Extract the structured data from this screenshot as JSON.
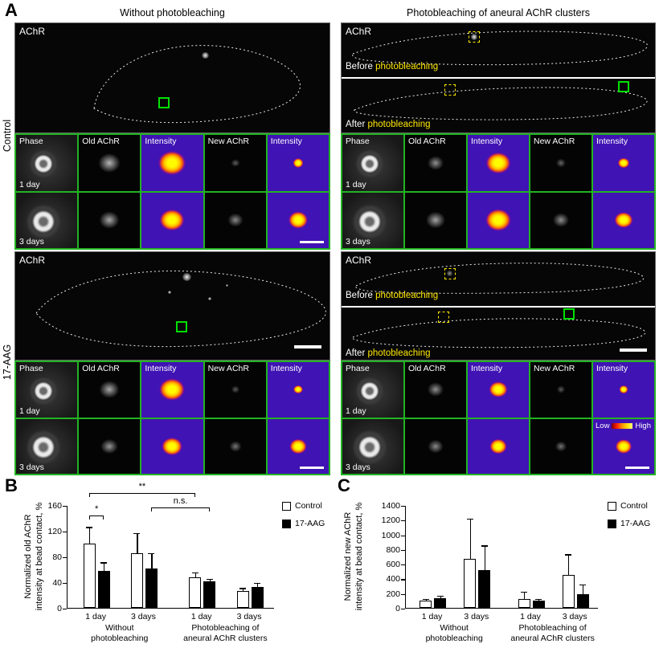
{
  "figure": {
    "panels": {
      "a": "A",
      "b": "B",
      "c": "C"
    }
  },
  "panel_a": {
    "column_headers": [
      "Without photobleaching",
      "Photobleaching of aneural AChR clusters"
    ],
    "row_labels": [
      "Control",
      "17-AAG"
    ],
    "image_label": "AChR",
    "bleach_labels": {
      "before": "Before",
      "after": "After",
      "keyword": "photobleaching"
    },
    "grid_headers": [
      "Phase",
      "Old AChR",
      "Intensity",
      "New AChR",
      "Intensity"
    ],
    "time_labels": [
      "1 day",
      "3 days"
    ],
    "colorbar": {
      "low": "Low",
      "high": "High"
    }
  },
  "chart_data": [
    {
      "panel": "B",
      "type": "bar",
      "ylabel": "Normalized old AChR intensity at bead contact, %",
      "ylabel_lines": [
        "Normalized old AChR",
        "intensity at bead contact, %"
      ],
      "ylim": [
        0,
        160
      ],
      "yticks": [
        0,
        40,
        80,
        120,
        160
      ],
      "grid": false,
      "legend_position": "top-right",
      "groups": [
        "1 day",
        "3 days",
        "1 day",
        "3 days"
      ],
      "condition_labels": [
        [
          "Without",
          "photobleaching"
        ],
        [
          "Photobleaching of",
          "aneural AChR clusters"
        ]
      ],
      "series": [
        {
          "name": "Control",
          "fill": "#ffffff",
          "values": [
            100,
            85,
            48,
            26
          ],
          "errors": [
            27,
            33,
            8,
            6
          ]
        },
        {
          "name": "17-AAG",
          "fill": "#000000",
          "values": [
            57,
            61,
            41,
            32
          ],
          "errors": [
            15,
            25,
            5,
            8
          ]
        }
      ],
      "significance": [
        {
          "label": "*"
        },
        {
          "label": "**"
        },
        {
          "label": "n.s."
        }
      ]
    },
    {
      "panel": "C",
      "type": "bar",
      "ylabel": "Normalized new AChR intensity at bead contact, %",
      "ylabel_lines": [
        "Normalized new AChR",
        "intensity at bead contact, %"
      ],
      "ylim": [
        0,
        1400
      ],
      "yticks": [
        0,
        200,
        400,
        600,
        800,
        1000,
        1200,
        1400
      ],
      "grid": false,
      "legend_position": "top-right",
      "groups": [
        "1 day",
        "3 days",
        "1 day",
        "3 days"
      ],
      "condition_labels": [
        [
          "Without",
          "photobleaching"
        ],
        [
          "Photobleaching of",
          "aneural AChR clusters"
        ]
      ],
      "series": [
        {
          "name": "Control",
          "fill": "#ffffff",
          "values": [
            100,
            670,
            120,
            450
          ],
          "errors": [
            30,
            560,
            110,
            290
          ]
        },
        {
          "name": "17-AAG",
          "fill": "#000000",
          "values": [
            130,
            510,
            100,
            185
          ],
          "errors": [
            45,
            350,
            30,
            145
          ]
        }
      ]
    }
  ],
  "colors": {
    "grid_border_green": "#22b422",
    "intensity_background": "#4013b4",
    "intensity_hot": "#ffee00",
    "highlight_green": "#00e000",
    "highlight_yellow": "#ffe800"
  }
}
